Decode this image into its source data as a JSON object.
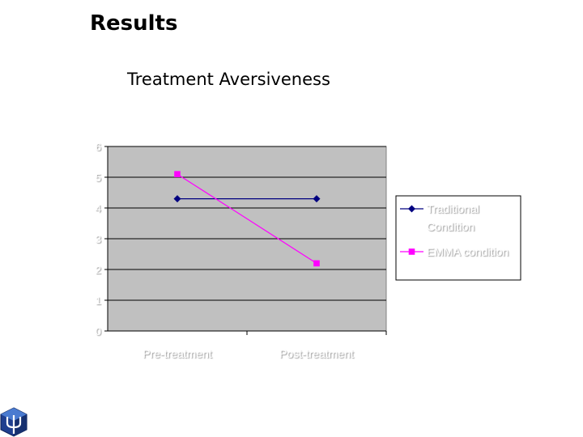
{
  "slide": {
    "title": "Results",
    "subtitle": "Treatment Aversiveness"
  },
  "chart_data": {
    "type": "line",
    "title": "Treatment Aversiveness",
    "categories": [
      "Pre-treatment",
      "Post-treatment"
    ],
    "yticks": [
      0,
      1,
      2,
      3,
      4,
      5,
      6
    ],
    "ylim": [
      0,
      6
    ],
    "grid": true,
    "legend_position": "right",
    "series": [
      {
        "name": "Traditional Condition",
        "values": [
          4.3,
          4.3
        ],
        "color": "#000080",
        "marker": "diamond"
      },
      {
        "name": "EMMA condition",
        "values": [
          5.1,
          2.2
        ],
        "color": "#ff00ff",
        "marker": "square"
      }
    ],
    "plot_background": "#c0c0c0",
    "text_color": "#ffffff"
  },
  "logo": {
    "icon": "psi-cube-logo"
  }
}
